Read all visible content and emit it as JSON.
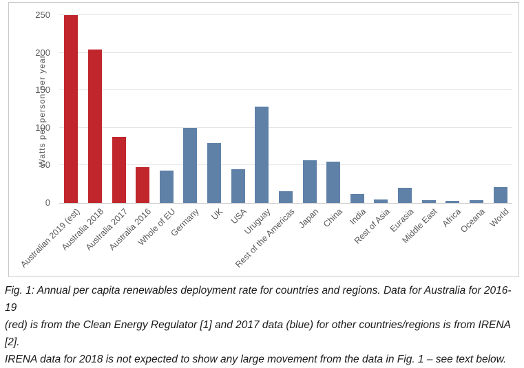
{
  "figure": {
    "caption_lines": [
      "Fig. 1: Annual per capita renewables deployment rate for countries and regions. Data for Australia for 2016-19",
      "(red) is from the Clean Energy Regulator [1] and 2017 data (blue) for other countries/regions is from IRENA [2].",
      "IRENA data for 2018 is not expected to show any large movement from the data in Fig. 1 – see text below."
    ]
  },
  "chart_data": {
    "type": "bar",
    "title": "",
    "xlabel": "",
    "ylabel": "Watts per person per year",
    "ylim": [
      0,
      250
    ],
    "yticks": [
      0,
      50,
      100,
      150,
      200,
      250
    ],
    "grid": true,
    "legend_position": "none",
    "categories": [
      "Australian 2019 (est)",
      "Australia 2018",
      "Australia 2017",
      "Australia 2016",
      "Whole of EU",
      "Germany",
      "UK",
      "USA",
      "Uruguay",
      "Rest of the Americas",
      "Japan",
      "China",
      "India",
      "Rest of Asia",
      "Eurasia",
      "Middle East",
      "Africa",
      "Oceana",
      "World"
    ],
    "values": [
      250,
      204,
      88,
      48,
      43,
      100,
      80,
      45,
      128,
      16,
      57,
      55,
      12,
      5,
      20,
      4,
      3,
      4,
      21
    ],
    "bar_color_keys": [
      "red",
      "red",
      "red",
      "red",
      "blue",
      "blue",
      "blue",
      "blue",
      "blue",
      "blue",
      "blue",
      "blue",
      "blue",
      "blue",
      "blue",
      "blue",
      "blue",
      "blue",
      "blue"
    ],
    "colors": {
      "red": "#c0262c",
      "blue": "#5f81a8"
    }
  }
}
